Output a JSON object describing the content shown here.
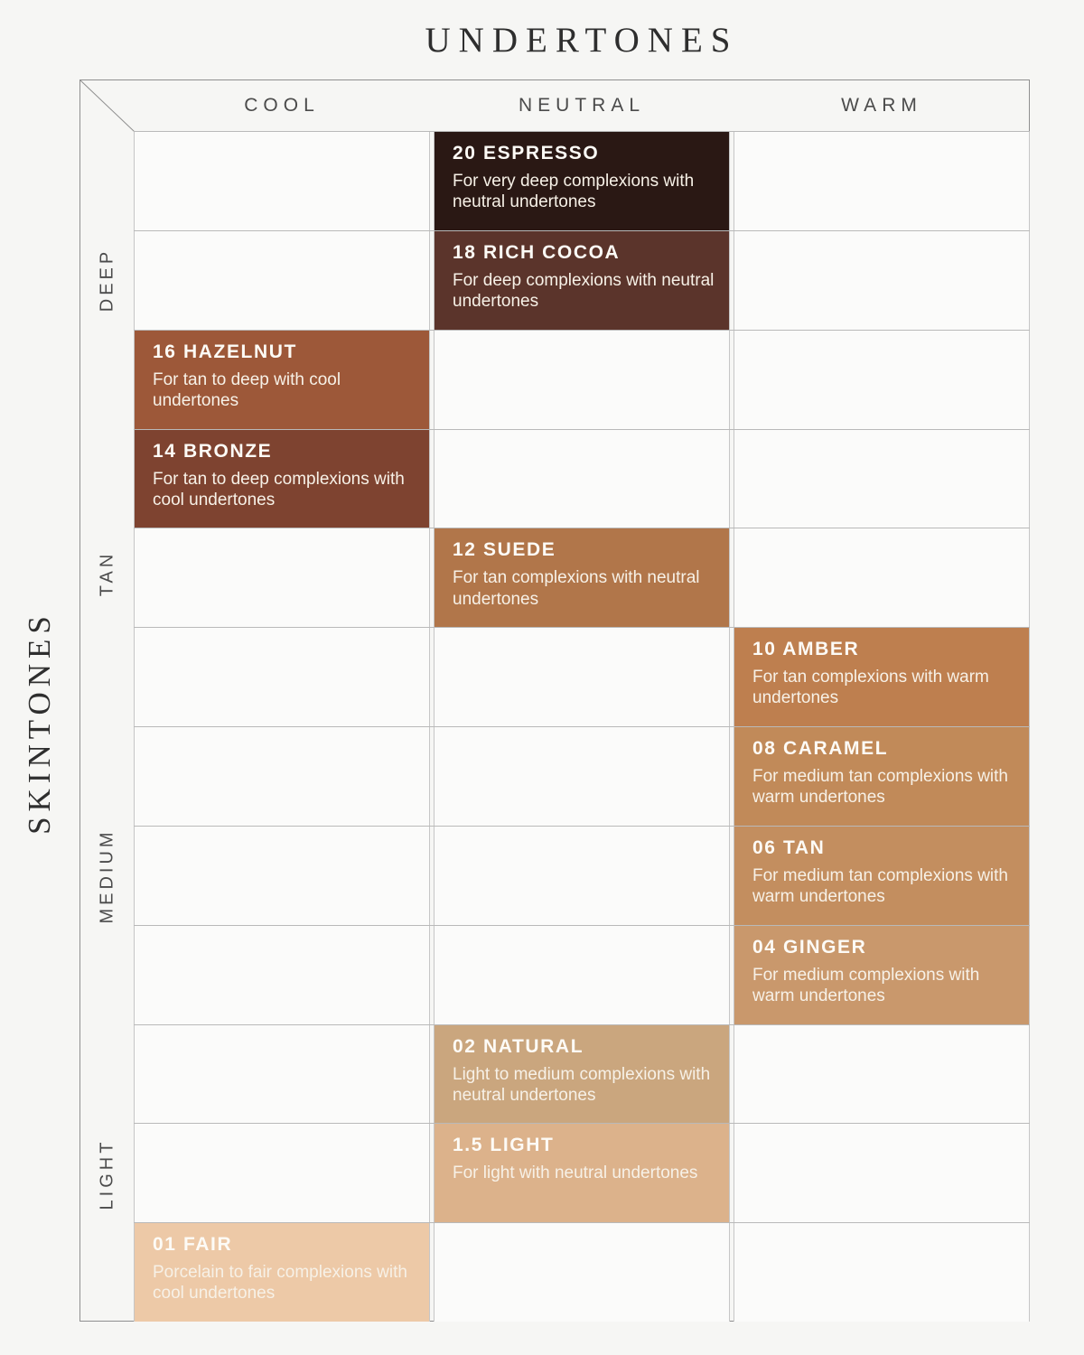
{
  "title": "UNDERTONES",
  "side_title": "SKINTONES",
  "columns": [
    {
      "id": "cool",
      "label": "COOL"
    },
    {
      "id": "neutral",
      "label": "NEUTRAL"
    },
    {
      "id": "warm",
      "label": "WARM"
    }
  ],
  "row_groups": [
    {
      "label": "DEEP",
      "rows": "1-3"
    },
    {
      "label": "TAN",
      "rows": "4-6"
    },
    {
      "label": "MEDIUM",
      "rows": "7-9"
    },
    {
      "label": "LIGHT",
      "rows": "10-12"
    }
  ],
  "shades": [
    {
      "row": 1,
      "column": "neutral",
      "name": "20 ESPRESSO",
      "description": "For very deep complexions with neutral undertones",
      "color": "#2a1814"
    },
    {
      "row": 2,
      "column": "neutral",
      "name": "18 RICH COCOA",
      "description": "For deep complexions with neutral undertones",
      "color": "#5b342b"
    },
    {
      "row": 3,
      "column": "cool",
      "name": "16 HAZELNUT",
      "description": "For tan to deep with cool undertones",
      "color": "#9d5839"
    },
    {
      "row": 4,
      "column": "cool",
      "name": "14 BRONZE",
      "description": "For tan to deep complexions with cool undertones",
      "color": "#7e4330"
    },
    {
      "row": 5,
      "column": "neutral",
      "name": "12 SUEDE",
      "description": "For tan complexions with neutral undertones",
      "color": "#b1764a"
    },
    {
      "row": 6,
      "column": "warm",
      "name": "10 AMBER",
      "description": "For tan complexions with warm undertones",
      "color": "#be7f4f"
    },
    {
      "row": 7,
      "column": "warm",
      "name": "08 CARAMEL",
      "description": "For medium tan complexions with warm undertones",
      "color": "#c18a59"
    },
    {
      "row": 8,
      "column": "warm",
      "name": "06 TAN",
      "description": "For medium tan complexions with warm undertones",
      "color": "#c38e5f"
    },
    {
      "row": 9,
      "column": "warm",
      "name": "04 GINGER",
      "description": "For medium complexions with warm undertones",
      "color": "#c9986c"
    },
    {
      "row": 10,
      "column": "neutral",
      "name": "02 NATURAL",
      "description": "Light to medium complexions with neutral undertones",
      "color": "#caa67e"
    },
    {
      "row": 11,
      "column": "neutral",
      "name": "1.5 LIGHT",
      "description": "For light with neutral undertones",
      "color": "#dcb28b"
    },
    {
      "row": 12,
      "column": "cool",
      "name": "01 FAIR",
      "description": "Porcelain to fair complexions with cool undertones",
      "color": "#edc9a7"
    }
  ],
  "colors": {
    "background": "#f6f6f4",
    "empty_cell": "#fbfbfa",
    "grid_line": "#b9b9b9",
    "frame_line": "#8f8f8f",
    "header_text": "#4b4b4b",
    "title_text": "#2e2e2e",
    "shade_name_text": "#fdfbf6",
    "shade_desc_text": "#f7f1e7"
  }
}
